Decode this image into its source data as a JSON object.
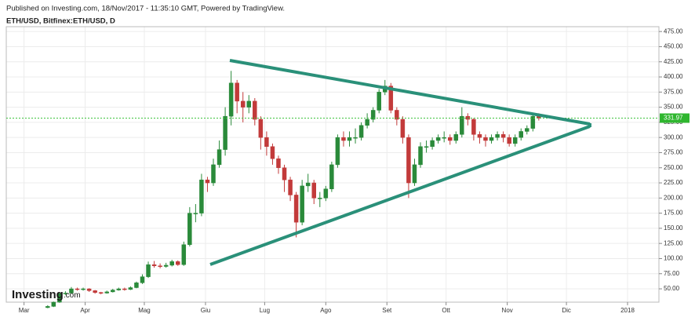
{
  "header": {
    "published": "Published on Investing.com, 18/Nov/2017 - 11:35:10 GMT, Powered by TradingView.",
    "symbol": "ETH/USD, Bitfinex:ETH/USD, D"
  },
  "logo": {
    "name": "Investing",
    "suffix": ".com"
  },
  "chart_data": {
    "type": "candlestick",
    "up_color": "#2a8a3a",
    "down_color": "#c23a3a",
    "grid": true,
    "open": [
      19,
      21,
      28,
      42,
      43,
      50,
      49,
      50,
      47,
      44,
      43,
      45,
      48,
      50,
      49,
      52,
      60,
      70,
      90,
      88,
      87,
      89,
      95,
      90,
      123,
      175,
      175,
      230,
      225,
      255,
      280,
      335,
      390,
      360,
      350,
      360,
      330,
      300,
      285,
      265,
      250,
      230,
      205,
      160,
      220,
      225,
      200,
      200,
      215,
      255,
      300,
      295,
      300,
      300,
      320,
      330,
      345,
      375,
      385,
      345,
      330,
      300,
      225,
      255,
      285,
      285,
      295,
      300,
      300,
      295,
      305,
      335,
      330,
      305,
      300,
      295,
      300,
      305,
      300,
      290,
      300,
      310,
      315,
      335
    ],
    "high": [
      23,
      29,
      44,
      46,
      53,
      52,
      52,
      51,
      48,
      45,
      47,
      50,
      52,
      52,
      54,
      62,
      74,
      95,
      96,
      92,
      93,
      98,
      97,
      128,
      185,
      190,
      240,
      235,
      265,
      295,
      350,
      410,
      395,
      375,
      370,
      365,
      335,
      310,
      290,
      270,
      255,
      235,
      210,
      230,
      240,
      230,
      210,
      220,
      260,
      305,
      310,
      310,
      315,
      325,
      340,
      350,
      380,
      395,
      390,
      350,
      335,
      305,
      265,
      292,
      295,
      300,
      305,
      310,
      305,
      310,
      350,
      340,
      332,
      310,
      305,
      305,
      310,
      310,
      305,
      305,
      315,
      320,
      338,
      340
    ],
    "low": [
      18,
      20,
      27,
      40,
      42,
      47,
      47,
      45,
      42,
      41,
      42,
      44,
      47,
      47,
      48,
      51,
      58,
      68,
      85,
      84,
      85,
      87,
      88,
      88,
      120,
      160,
      170,
      210,
      220,
      250,
      270,
      320,
      340,
      325,
      340,
      320,
      280,
      270,
      255,
      240,
      210,
      195,
      135,
      155,
      210,
      190,
      185,
      195,
      210,
      250,
      285,
      285,
      290,
      295,
      315,
      325,
      340,
      370,
      340,
      320,
      290,
      200,
      220,
      250,
      275,
      280,
      290,
      292,
      288,
      290,
      300,
      320,
      295,
      290,
      285,
      290,
      295,
      292,
      285,
      285,
      295,
      305,
      310,
      328
    ],
    "close": [
      21,
      28,
      42,
      43,
      50,
      49,
      50,
      47,
      44,
      43,
      45,
      48,
      50,
      49,
      52,
      60,
      70,
      90,
      88,
      87,
      89,
      95,
      90,
      123,
      175,
      175,
      230,
      225,
      255,
      280,
      335,
      390,
      360,
      350,
      360,
      330,
      300,
      285,
      265,
      250,
      230,
      205,
      160,
      220,
      225,
      200,
      200,
      215,
      255,
      300,
      295,
      300,
      300,
      320,
      330,
      345,
      375,
      385,
      345,
      330,
      300,
      225,
      255,
      285,
      285,
      295,
      300,
      300,
      295,
      305,
      335,
      330,
      305,
      300,
      295,
      300,
      305,
      300,
      290,
      300,
      310,
      315,
      335,
      332
    ],
    "current_price": 331.97,
    "xlim": [
      -7,
      103.3
    ],
    "xticks": [
      {
        "value": -4,
        "label": "Mar"
      },
      {
        "value": 6.33,
        "label": "Apr"
      },
      {
        "value": 16.33,
        "label": "Mag"
      },
      {
        "value": 26.67,
        "label": "Giu"
      },
      {
        "value": 36.67,
        "label": "Lug"
      },
      {
        "value": 47,
        "label": "Ago"
      },
      {
        "value": 57.33,
        "label": "Set"
      },
      {
        "value": 67.33,
        "label": "Ott"
      },
      {
        "value": 77.67,
        "label": "Nov"
      },
      {
        "value": 87.67,
        "label": "Dic"
      },
      {
        "value": 98,
        "label": "2018"
      }
    ],
    "ylim": [
      28,
      483
    ],
    "yticks": [
      {
        "value": 50,
        "label": "50.00"
      },
      {
        "value": 75,
        "label": "75.00"
      },
      {
        "value": 100,
        "label": "100.00"
      },
      {
        "value": 125,
        "label": "125.00"
      },
      {
        "value": 150,
        "label": "150.00"
      },
      {
        "value": 175,
        "label": "175.00"
      },
      {
        "value": 200,
        "label": "200.00"
      },
      {
        "value": 225,
        "label": "225.00"
      },
      {
        "value": 250,
        "label": "250.00"
      },
      {
        "value": 275,
        "label": "275.00"
      },
      {
        "value": 300,
        "label": "300.00"
      },
      {
        "value": 325,
        "label": "325.00"
      },
      {
        "value": 350,
        "label": "350.00"
      },
      {
        "value": 375,
        "label": "375.00"
      },
      {
        "value": 400,
        "label": "400.00"
      },
      {
        "value": 425,
        "label": "425.00"
      },
      {
        "value": 450,
        "label": "450.00"
      },
      {
        "value": 475,
        "label": "475.00"
      }
    ]
  }
}
